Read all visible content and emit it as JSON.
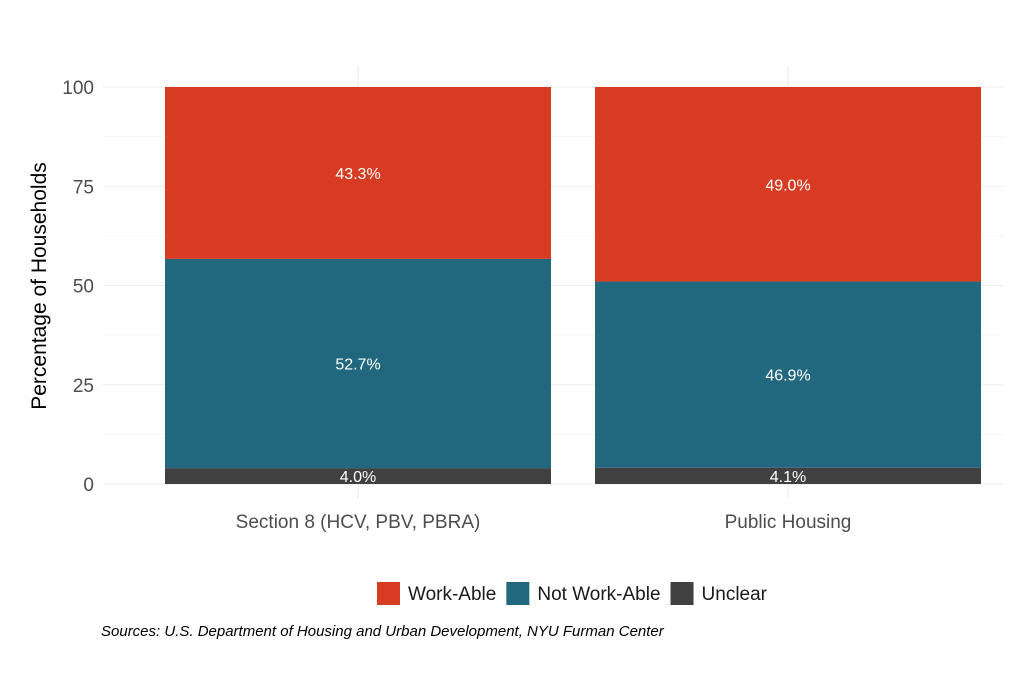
{
  "chart_data": {
    "type": "bar",
    "stacked": true,
    "categories": [
      "Section 8 (HCV, PBV, PBRA)",
      "Public Housing"
    ],
    "series": [
      {
        "name": "Unclear",
        "color": "#404040",
        "values": [
          4.0,
          4.1
        ],
        "labels": [
          "4.0%",
          "4.1%"
        ]
      },
      {
        "name": "Not Work-Able",
        "color": "#21687e",
        "values": [
          52.7,
          46.9
        ],
        "labels": [
          "52.7%",
          "46.9%"
        ]
      },
      {
        "name": "Work-Able",
        "color": "#d73c22",
        "values": [
          43.3,
          49.0
        ],
        "labels": [
          "43.3%",
          "49.0%"
        ]
      }
    ],
    "legend_order": [
      "Work-Able",
      "Not Work-Able",
      "Unclear"
    ],
    "ylabel": "Percentage of Households",
    "xlabel": "",
    "ylim": [
      0,
      100
    ],
    "yticks": [
      0,
      25,
      50,
      75,
      100
    ],
    "grid": true,
    "legend_position": "bottom"
  },
  "source_note": "Sources: U.S. Department of Housing and Urban Development, NYU Furman Center"
}
